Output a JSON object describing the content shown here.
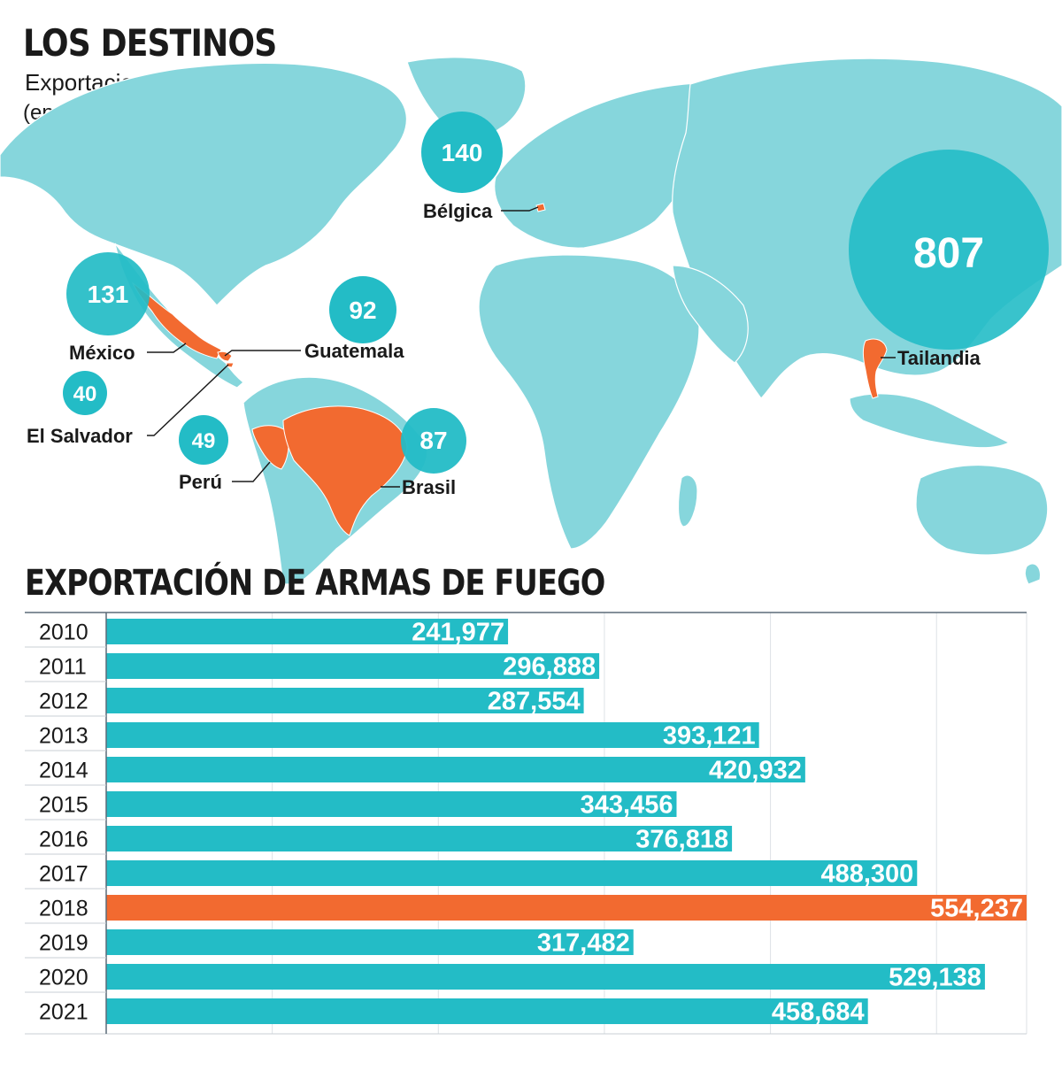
{
  "header": {
    "title": "LOS DESTINOS",
    "subtitle": "Exportaciones de armas",
    "unit": "(en miles)"
  },
  "colors": {
    "teal": "#23bcc6",
    "teal_dark": "#149aa6",
    "land": "#86d6dc",
    "highlight": "#f26a30",
    "text": "#1a1a1a"
  },
  "map_destinations": [
    {
      "country": "Bélgica",
      "value": "140"
    },
    {
      "country": "Tailandia",
      "value": "807"
    },
    {
      "country": "México",
      "value": "131"
    },
    {
      "country": "Guatemala",
      "value": "92"
    },
    {
      "country": "El Salvador",
      "value": "40"
    },
    {
      "country": "Perú",
      "value": "49"
    },
    {
      "country": "Brasil",
      "value": "87"
    }
  ],
  "bar_section": {
    "title": "EXPORTACIÓN DE ARMAS DE FUEGO"
  },
  "chart_data": {
    "type": "bar",
    "orientation": "horizontal",
    "title": "EXPORTACIÓN DE ARMAS DE FUEGO",
    "categories": [
      "2010",
      "2011",
      "2012",
      "2013",
      "2014",
      "2015",
      "2016",
      "2017",
      "2018",
      "2019",
      "2020",
      "2021"
    ],
    "values": [
      241977,
      296888,
      287554,
      393121,
      420932,
      343456,
      376818,
      488300,
      554237,
      317482,
      529138,
      458684
    ],
    "labels": [
      "241,977",
      "296,888",
      "287,554",
      "393,121",
      "420,932",
      "343,456",
      "376,818",
      "488,300",
      "554,237",
      "317,482",
      "529,138",
      "458,684"
    ],
    "highlight_category": "2018",
    "xlim": [
      0,
      554237
    ],
    "grid": true,
    "legend": "none"
  }
}
